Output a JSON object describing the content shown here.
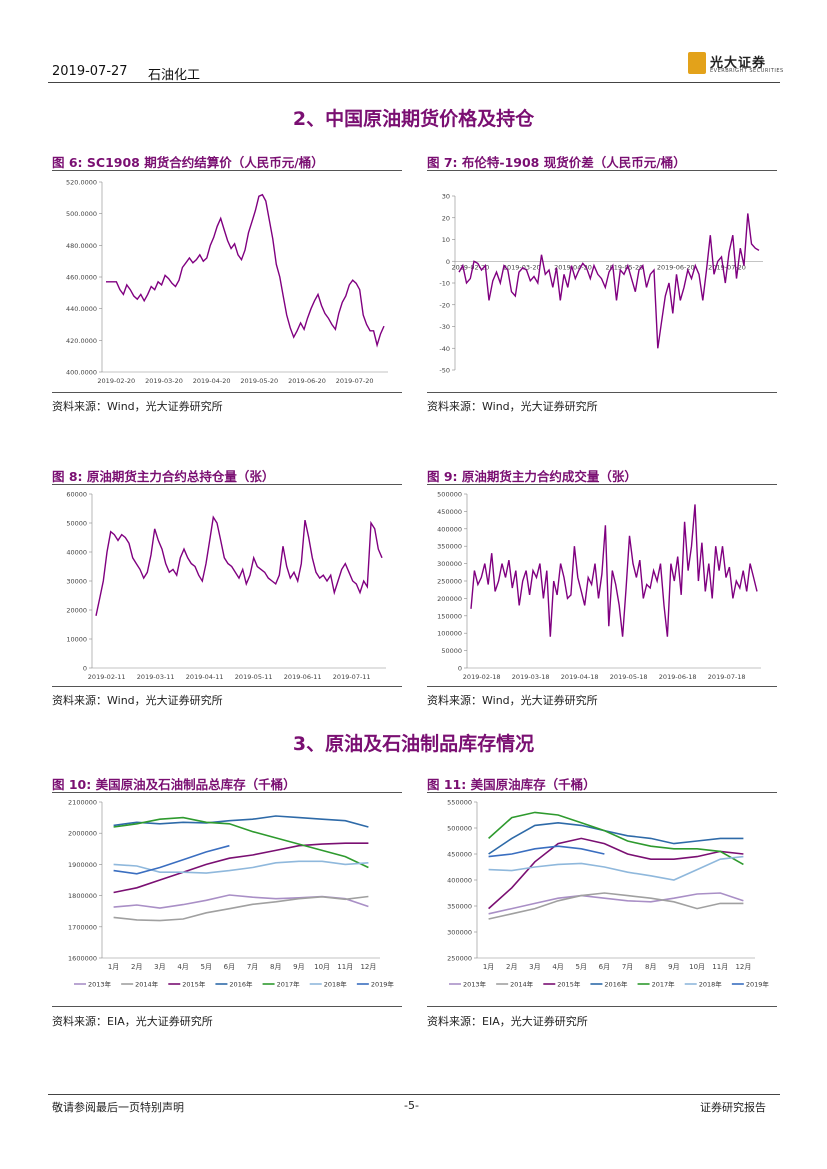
{
  "header": {
    "date": "2019-07-27",
    "section": "石油化工",
    "logo_cn": "光大证券",
    "logo_en": "EVERBRIGHT SECURITIES"
  },
  "section2_title": "2、中国原油期货价格及持仓",
  "section3_title": "3、原油及石油制品库存情况",
  "figures": {
    "fig6": {
      "title": "图 6:  SC1908 期货合约结算价（人民币元/桶）",
      "source": "资料来源：Wind，光大证券研究所"
    },
    "fig7": {
      "title": "图 7:  布伦特-1908 现货价差（人民币元/桶）",
      "source": "资料来源：Wind，光大证券研究所"
    },
    "fig8": {
      "title": "图 8:  原油期货主力合约总持仓量（张）",
      "source": "资料来源：Wind，光大证券研究所"
    },
    "fig9": {
      "title": "图 9:  原油期货主力合约成交量（张）",
      "source": "资料来源：Wind，光大证券研究所"
    },
    "fig10": {
      "title": "图 10:  美国原油及石油制品总库存（千桶）",
      "source": "资料来源：EIA，光大证券研究所"
    },
    "fig11": {
      "title": "图 11:  美国原油库存（千桶）",
      "source": "资料来源：EIA，光大证券研究所"
    }
  },
  "footer": {
    "left": "敬请参阅最后一页特别声明",
    "center": "-5-",
    "right": "证券研究报告"
  },
  "chart_data": [
    {
      "id": "fig6",
      "type": "line",
      "ylim": [
        400,
        520
      ],
      "yticks": [
        400,
        420,
        440,
        460,
        480,
        500,
        520
      ],
      "ytick_labels": [
        "400.0000",
        "420.0000",
        "440.0000",
        "460.0000",
        "480.0000",
        "500.0000",
        "520.0000"
      ],
      "xtick_labels": [
        "2019-02-20",
        "2019-03-20",
        "2019-04-20",
        "2019-05-20",
        "2019-06-20",
        "2019-07-20"
      ],
      "color": "#800080",
      "series": [
        {
          "name": "SC1908",
          "values": [
            457,
            457,
            457,
            457,
            452,
            449,
            455,
            452,
            448,
            446,
            449,
            445,
            449,
            454,
            452,
            457,
            455,
            461,
            459,
            456,
            454,
            458,
            466,
            469,
            472,
            469,
            471,
            474,
            470,
            472,
            480,
            485,
            492,
            497,
            490,
            483,
            478,
            481,
            474,
            471,
            477,
            488,
            495,
            502,
            511,
            512,
            508,
            496,
            484,
            468,
            460,
            448,
            436,
            428,
            422,
            426,
            431,
            427,
            434,
            440,
            445,
            449,
            442,
            437,
            434,
            430,
            427,
            437,
            444,
            448,
            455,
            458,
            456,
            452,
            436,
            430,
            426,
            426,
            417,
            424,
            429
          ]
        }
      ]
    },
    {
      "id": "fig7",
      "type": "line",
      "ylim": [
        -50,
        30
      ],
      "yticks": [
        -50,
        -40,
        -30,
        -20,
        -10,
        0,
        10,
        20,
        30
      ],
      "ytick_labels": [
        "-50",
        "-40",
        "-30",
        "-20",
        "-10",
        "0",
        "10",
        "20",
        "30"
      ],
      "xtick_labels": [
        "2019-02-20",
        "2019-03-20",
        "2019-04-20",
        "2019-05-20",
        "2019-06-20",
        "2019-07-20"
      ],
      "color": "#800080",
      "series": [
        {
          "name": "价差",
          "values": [
            -5,
            -2,
            -10,
            -8,
            0,
            -1,
            -4,
            -2,
            -18,
            -9,
            -5,
            -10,
            -2,
            -4,
            -14,
            -16,
            -5,
            -3,
            -4,
            -9,
            -7,
            -10,
            3,
            -6,
            -4,
            -12,
            -3,
            -18,
            -6,
            -12,
            -2,
            -8,
            -4,
            -1,
            -3,
            -8,
            -2,
            -6,
            -8,
            -12,
            -5,
            -2,
            -18,
            -4,
            -6,
            -2,
            -8,
            -14,
            -4,
            -2,
            -12,
            -6,
            -4,
            -40,
            -28,
            -16,
            -10,
            -24,
            -6,
            -18,
            -12,
            -4,
            -8,
            -2,
            -6,
            -18,
            -4,
            12,
            -6,
            0,
            2,
            -10,
            4,
            12,
            -8,
            6,
            -2,
            22,
            8,
            6,
            5
          ]
        }
      ]
    },
    {
      "id": "fig8",
      "type": "line",
      "ylim": [
        0,
        60000
      ],
      "yticks": [
        0,
        10000,
        20000,
        30000,
        40000,
        50000,
        60000
      ],
      "ytick_labels": [
        "0",
        "10000",
        "20000",
        "30000",
        "40000",
        "50000",
        "60000"
      ],
      "xtick_labels": [
        "2019-02-11",
        "2019-03-11",
        "2019-04-11",
        "2019-05-11",
        "2019-06-11",
        "2019-07-11"
      ],
      "color": "#800080",
      "series": [
        {
          "name": "持仓量",
          "values": [
            18000,
            24000,
            30000,
            40000,
            47000,
            46000,
            44000,
            46000,
            45000,
            43000,
            38000,
            36000,
            34000,
            31000,
            33000,
            39000,
            48000,
            44000,
            41000,
            36000,
            33000,
            34000,
            32000,
            38000,
            41000,
            38000,
            36000,
            35000,
            32000,
            30000,
            36000,
            44000,
            52000,
            50000,
            44000,
            38000,
            36000,
            35000,
            33000,
            31000,
            34000,
            29000,
            32000,
            38000,
            35000,
            34000,
            33000,
            31000,
            30000,
            29000,
            32000,
            42000,
            35000,
            31000,
            33000,
            30000,
            36000,
            51000,
            45000,
            38000,
            33000,
            31000,
            32000,
            30000,
            32000,
            26000,
            30000,
            34000,
            36000,
            33000,
            30000,
            29000,
            26000,
            30000,
            28000,
            50000,
            48000,
            41000,
            38000
          ]
        }
      ]
    },
    {
      "id": "fig9",
      "type": "line",
      "ylim": [
        0,
        500000
      ],
      "yticks": [
        0,
        50000,
        100000,
        150000,
        200000,
        250000,
        300000,
        350000,
        400000,
        450000,
        500000
      ],
      "ytick_labels": [
        "0",
        "50000",
        "100000",
        "150000",
        "200000",
        "250000",
        "300000",
        "350000",
        "400000",
        "450000",
        "500000"
      ],
      "xtick_labels": [
        "2019-02-18",
        "2019-03-18",
        "2019-04-18",
        "2019-05-18",
        "2019-06-18",
        "2019-07-18"
      ],
      "color": "#800080",
      "series": [
        {
          "name": "成交量",
          "values": [
            170000,
            280000,
            240000,
            260000,
            300000,
            240000,
            330000,
            220000,
            250000,
            300000,
            260000,
            310000,
            230000,
            280000,
            180000,
            250000,
            280000,
            210000,
            280000,
            260000,
            300000,
            200000,
            280000,
            90000,
            250000,
            210000,
            300000,
            260000,
            200000,
            210000,
            350000,
            260000,
            220000,
            180000,
            260000,
            240000,
            300000,
            200000,
            270000,
            410000,
            120000,
            280000,
            240000,
            180000,
            90000,
            230000,
            380000,
            300000,
            260000,
            310000,
            200000,
            240000,
            230000,
            280000,
            250000,
            300000,
            180000,
            90000,
            300000,
            250000,
            320000,
            210000,
            420000,
            280000,
            350000,
            470000,
            250000,
            360000,
            220000,
            300000,
            200000,
            350000,
            280000,
            350000,
            260000,
            290000,
            200000,
            250000,
            230000,
            280000,
            220000,
            300000,
            260000,
            220000
          ]
        }
      ]
    },
    {
      "id": "fig10",
      "type": "line",
      "ylim": [
        1600000,
        2100000
      ],
      "yticks": [
        1600000,
        1700000,
        1800000,
        1900000,
        2000000,
        2100000
      ],
      "ytick_labels": [
        "1600000",
        "1700000",
        "1800000",
        "1900000",
        "2000000",
        "2100000"
      ],
      "categories": [
        "1月",
        "2月",
        "3月",
        "4月",
        "5月",
        "6月",
        "7月",
        "8月",
        "9月",
        "10月",
        "11月",
        "12月"
      ],
      "series": [
        {
          "name": "2013年",
          "color": "#a98fc6",
          "values": [
            1763,
            1770,
            1760,
            1771,
            1785,
            1802,
            1795,
            1790,
            1793,
            1797,
            1790,
            1765
          ]
        },
        {
          "name": "2014年",
          "color": "#a0a0a0",
          "values": [
            1730,
            1722,
            1720,
            1725,
            1745,
            1758,
            1772,
            1780,
            1790,
            1796,
            1788,
            1797
          ]
        },
        {
          "name": "2015年",
          "color": "#7a0f72",
          "values": [
            1810,
            1825,
            1850,
            1875,
            1900,
            1920,
            1930,
            1945,
            1960,
            1965,
            1968,
            1968
          ]
        },
        {
          "name": "2016年",
          "color": "#2e6aa8",
          "values": [
            2025,
            2035,
            2030,
            2035,
            2033,
            2040,
            2045,
            2055,
            2050,
            2045,
            2040,
            2020
          ]
        },
        {
          "name": "2017年",
          "color": "#2e9a2e",
          "values": [
            2020,
            2030,
            2045,
            2050,
            2035,
            2030,
            2005,
            1985,
            1965,
            1945,
            1925,
            1890
          ]
        },
        {
          "name": "2018年",
          "color": "#8fb8dc",
          "values": [
            1900,
            1895,
            1875,
            1875,
            1872,
            1880,
            1890,
            1905,
            1910,
            1910,
            1900,
            1905
          ]
        },
        {
          "name": "2019年",
          "color": "#3a6ec0",
          "values": [
            1880,
            1870,
            1890,
            1915,
            1940,
            1960,
            null,
            null,
            null,
            null,
            null,
            null
          ]
        }
      ]
    },
    {
      "id": "fig11",
      "type": "line",
      "ylim": [
        250000,
        550000
      ],
      "yticks": [
        250000,
        300000,
        350000,
        400000,
        450000,
        500000,
        550000
      ],
      "ytick_labels": [
        "250000",
        "300000",
        "350000",
        "400000",
        "450000",
        "500000",
        "550000"
      ],
      "categories": [
        "1月",
        "2月",
        "3月",
        "4月",
        "5月",
        "6月",
        "7月",
        "8月",
        "9月",
        "10月",
        "11月",
        "12月"
      ],
      "series": [
        {
          "name": "2013年",
          "color": "#a98fc6",
          "values": [
            335,
            345,
            355,
            365,
            370,
            365,
            360,
            358,
            365,
            373,
            375,
            360
          ]
        },
        {
          "name": "2014年",
          "color": "#a0a0a0",
          "values": [
            325,
            335,
            345,
            360,
            370,
            375,
            370,
            365,
            358,
            345,
            355,
            355
          ]
        },
        {
          "name": "2015年",
          "color": "#7a0f72",
          "values": [
            345,
            385,
            435,
            470,
            480,
            470,
            450,
            440,
            440,
            445,
            455,
            450
          ]
        },
        {
          "name": "2016年",
          "color": "#2e6aa8",
          "values": [
            450,
            480,
            505,
            510,
            505,
            495,
            485,
            480,
            470,
            475,
            480,
            480
          ]
        },
        {
          "name": "2017年",
          "color": "#2e9a2e",
          "values": [
            480,
            520,
            530,
            525,
            510,
            495,
            475,
            465,
            460,
            460,
            455,
            430
          ]
        },
        {
          "name": "2018年",
          "color": "#8fb8dc",
          "values": [
            420,
            418,
            425,
            430,
            432,
            425,
            415,
            408,
            400,
            420,
            440,
            445
          ]
        },
        {
          "name": "2019年",
          "color": "#3a6ec0",
          "values": [
            445,
            450,
            460,
            465,
            460,
            450,
            null,
            null,
            null,
            null,
            null,
            null
          ]
        }
      ]
    }
  ]
}
